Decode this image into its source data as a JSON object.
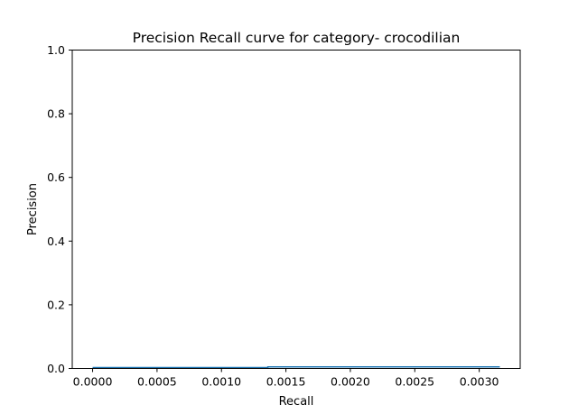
{
  "chart_data": {
    "type": "line",
    "title": "Precision Recall curve for category- crocodilian",
    "xlabel": "Recall",
    "ylabel": "Precision",
    "xlim": [
      -0.000158,
      0.003318
    ],
    "ylim": [
      0.0,
      1.0
    ],
    "xticks": [
      0.0,
      0.0005,
      0.001,
      0.0015,
      0.002,
      0.0025,
      0.003
    ],
    "xtick_labels": [
      "0.0000",
      "0.0005",
      "0.0010",
      "0.0015",
      "0.0020",
      "0.0025",
      "0.0030"
    ],
    "yticks": [
      0.0,
      0.2,
      0.4,
      0.6,
      0.8,
      1.0
    ],
    "ytick_labels": [
      "0.0",
      "0.2",
      "0.4",
      "0.6",
      "0.8",
      "1.0"
    ],
    "grid": false,
    "series": [
      {
        "color": "#1f77b4",
        "step": "post",
        "x": [
          0.0,
          0.00136,
          0.00316
        ],
        "y": [
          0.003,
          0.005,
          0.005
        ]
      }
    ]
  }
}
